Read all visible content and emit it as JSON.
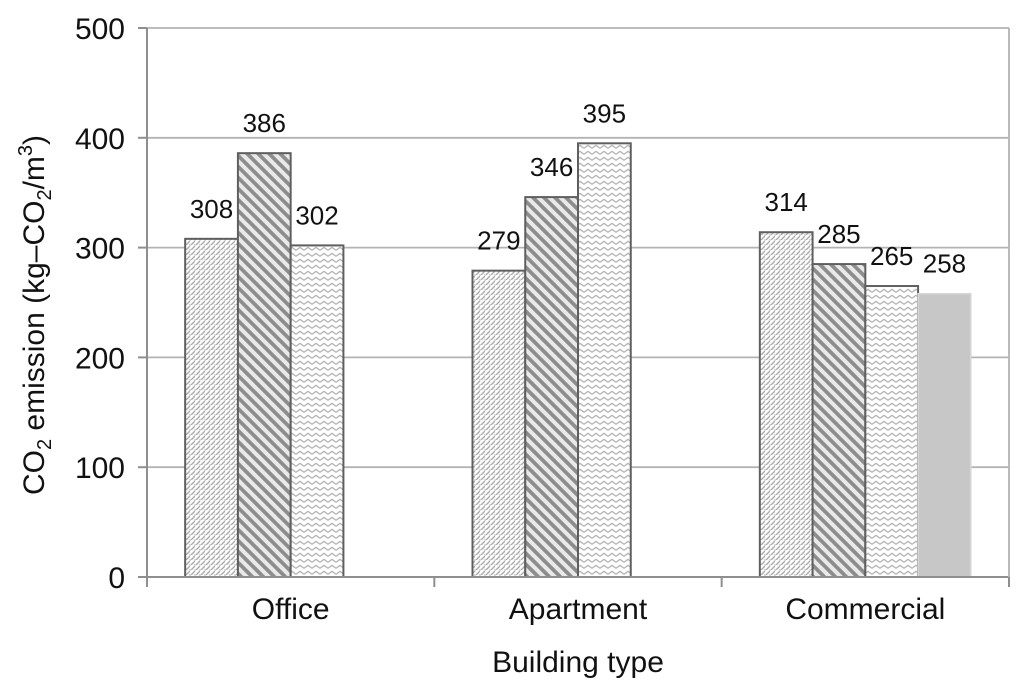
{
  "page": {
    "background": "#ffffff"
  },
  "chart_data": {
    "type": "bar",
    "title": "",
    "xlabel": "Building type",
    "ylabel": "CO₂ emission (kg–CO₂/m³)",
    "categories": [
      "Office",
      "Apartment",
      "Commercial"
    ],
    "series": [
      {
        "pattern": "light-diagonal-hatch",
        "values": [
          308,
          279,
          314
        ]
      },
      {
        "pattern": "dark-diagonal-stripes",
        "values": [
          386,
          346,
          285
        ]
      },
      {
        "pattern": "zigzag",
        "values": [
          302,
          395,
          265
        ]
      },
      {
        "pattern": "solid-gray",
        "values": [
          null,
          null,
          258
        ]
      }
    ],
    "data_labels": [
      {
        "category": "Office",
        "values": [
          308,
          386,
          302
        ]
      },
      {
        "category": "Apartment",
        "values": [
          279,
          346,
          395
        ]
      },
      {
        "category": "Commercial",
        "values": [
          314,
          285,
          265,
          258
        ]
      }
    ],
    "ylim": [
      0,
      500
    ],
    "yticks": [
      0,
      100,
      200,
      300,
      400,
      500
    ],
    "grid": true,
    "legend": "none",
    "colors": {
      "hatch_line": "#ababab",
      "dark_stripe_bg": "#8d8d8d",
      "dark_stripe_fg": "#e9e9e9",
      "zigzag_line": "#b5b5b5",
      "solid_fill": "#c7c7c7",
      "solid_border": "#d8d8d8",
      "bar_border": "#5f5f5f",
      "gridline": "#b3b3b3",
      "axis": "#8f8f8f",
      "text": "#111111"
    }
  }
}
